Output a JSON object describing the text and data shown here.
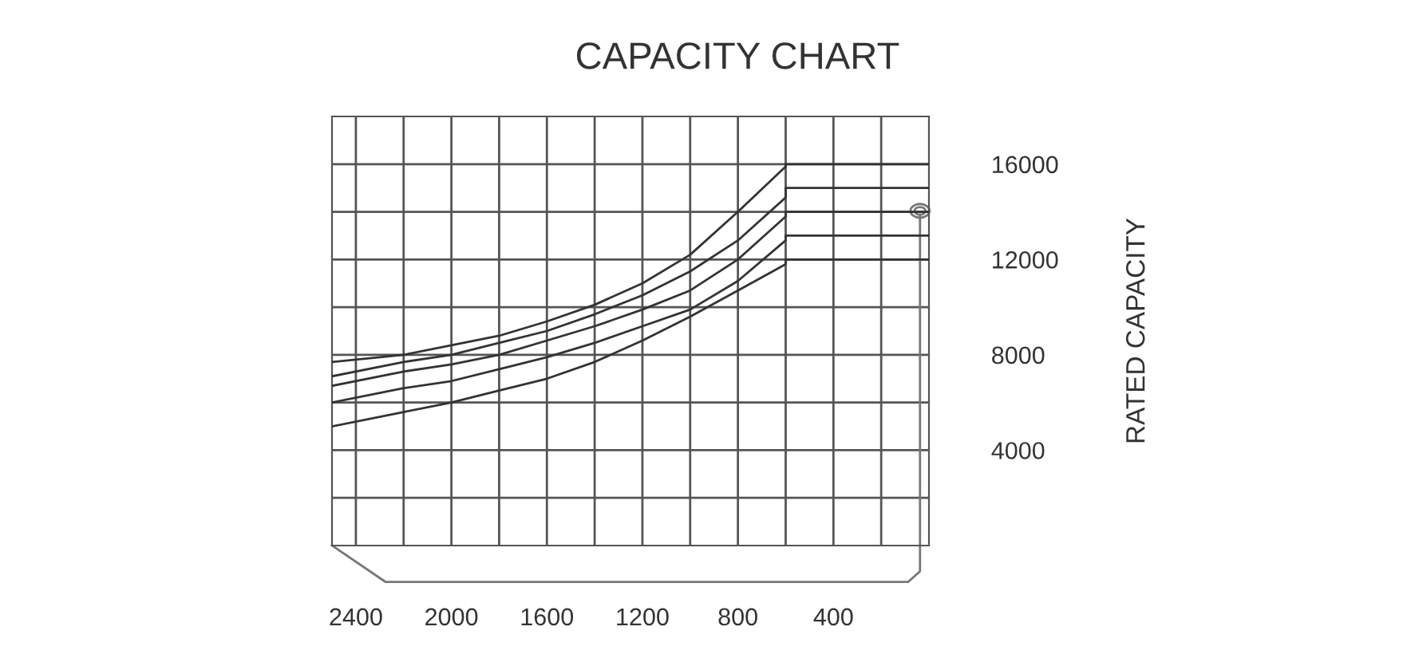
{
  "chart_data": {
    "type": "line",
    "title": "CAPACITY CHART",
    "ylabel": "RATED CAPACITY",
    "xlim": [
      2500,
      0
    ],
    "ylim": [
      0,
      18000
    ],
    "xticks": [
      {
        "value": 2400,
        "label": "2400"
      },
      {
        "value": 2200,
        "label": null
      },
      {
        "value": 2000,
        "label": "2000"
      },
      {
        "value": 1800,
        "label": null
      },
      {
        "value": 1600,
        "label": "1600"
      },
      {
        "value": 1400,
        "label": null
      },
      {
        "value": 1200,
        "label": "1200"
      },
      {
        "value": 1000,
        "label": null
      },
      {
        "value": 800,
        "label": "800"
      },
      {
        "value": 600,
        "label": null
      },
      {
        "value": 400,
        "label": "400"
      },
      {
        "value": 200,
        "label": null
      }
    ],
    "yticks": [
      {
        "value": 2000,
        "label": null
      },
      {
        "value": 4000,
        "label": "4000"
      },
      {
        "value": 6000,
        "label": null
      },
      {
        "value": 8000,
        "label": "8000"
      },
      {
        "value": 10000,
        "label": null
      },
      {
        "value": 12000,
        "label": "12000"
      },
      {
        "value": 14000,
        "label": null
      },
      {
        "value": 16000,
        "label": "16000"
      }
    ],
    "grid": true,
    "legend": false,
    "marker": "none",
    "line_style": "solid",
    "series": [
      {
        "color": "#333333",
        "x": [
          2500,
          2200,
          2000,
          1800,
          1600,
          1400,
          1200,
          1000,
          800,
          600,
          600,
          0
        ],
        "values": [
          7700,
          8000,
          8400,
          8800,
          9400,
          10100,
          11000,
          12200,
          14000,
          15900,
          16000,
          16000
        ]
      },
      {
        "color": "#333333",
        "x": [
          2500,
          2200,
          2000,
          1800,
          1600,
          1400,
          1200,
          1000,
          800,
          600,
          600,
          0
        ],
        "values": [
          7100,
          7700,
          8000,
          8500,
          9000,
          9700,
          10500,
          11500,
          12800,
          14600,
          15000,
          15000
        ]
      },
      {
        "color": "#333333",
        "x": [
          2500,
          2200,
          2000,
          1800,
          1600,
          1400,
          1200,
          1000,
          800,
          600,
          600,
          0
        ],
        "values": [
          6700,
          7300,
          7600,
          8000,
          8600,
          9200,
          9900,
          10700,
          12000,
          13800,
          14000,
          14000
        ]
      },
      {
        "color": "#333333",
        "x": [
          2500,
          2200,
          2000,
          1800,
          1600,
          1400,
          1200,
          1000,
          800,
          600,
          600,
          0
        ],
        "values": [
          6000,
          6600,
          6900,
          7400,
          7900,
          8500,
          9200,
          9900,
          11100,
          12800,
          13000,
          13000
        ]
      },
      {
        "color": "#333333",
        "x": [
          2500,
          2200,
          2000,
          1800,
          1600,
          1400,
          1200,
          1000,
          800,
          600,
          600,
          0
        ],
        "values": [
          5000,
          5600,
          6000,
          6500,
          7000,
          7700,
          8600,
          9600,
          10700,
          11800,
          12000,
          12000
        ]
      }
    ]
  }
}
